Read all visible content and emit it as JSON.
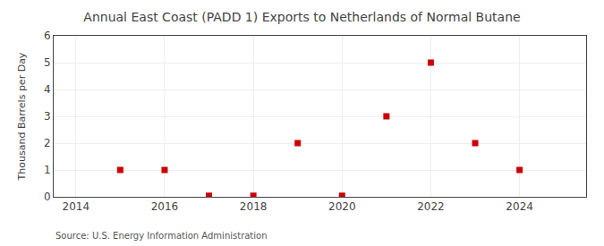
{
  "chart_data": {
    "type": "scatter",
    "title": "Annual East Coast (PADD 1) Exports to Netherlands of Normal Butane",
    "ylabel": "Thousand Barrels per Day",
    "annotations": [
      "Source: U.S. Energy Information Administration"
    ],
    "x": [
      2015,
      2016,
      2017,
      2018,
      2019,
      2020,
      2021,
      2022,
      2023,
      2024
    ],
    "values": [
      1.0,
      1.0,
      0.04,
      0.04,
      2.0,
      0.04,
      3.0,
      5.0,
      2.0,
      1.0
    ],
    "xlim": [
      2013.5,
      2025.5
    ],
    "xticks": [
      2014,
      2016,
      2018,
      2020,
      2022,
      2024
    ],
    "ylim": [
      0,
      6
    ],
    "yticks": [
      0,
      1,
      2,
      3,
      4,
      5,
      6
    ],
    "color": "#cc0000",
    "marker": "square",
    "grid": true
  }
}
